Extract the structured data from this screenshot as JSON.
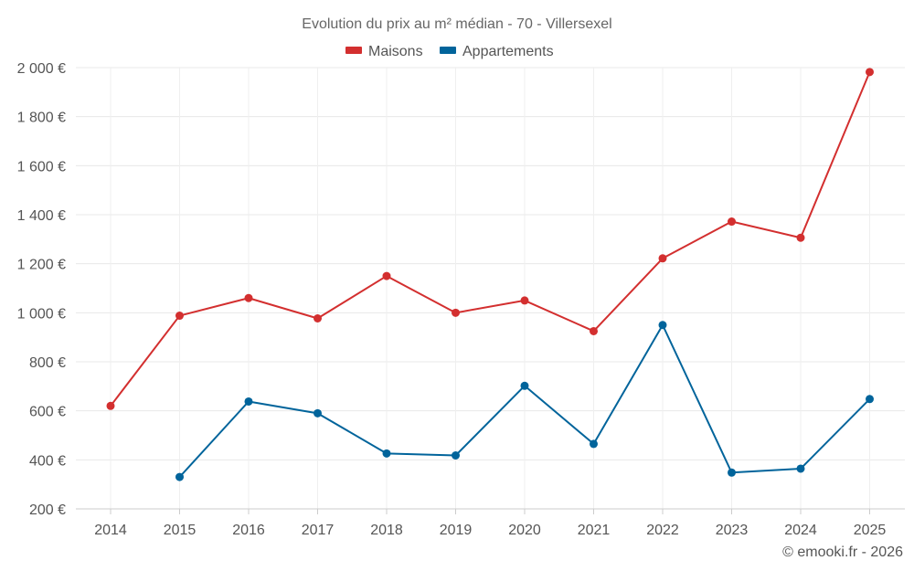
{
  "chart_data": {
    "type": "line",
    "title": "Evolution du prix au m² médian - 70 - Villersexel",
    "categories": [
      "2014",
      "2015",
      "2016",
      "2017",
      "2018",
      "2019",
      "2020",
      "2021",
      "2022",
      "2023",
      "2024",
      "2025"
    ],
    "series": [
      {
        "name": "Maisons",
        "color": "#d32f2f",
        "values": [
          620,
          988,
          1060,
          977,
          1150,
          1000,
          1050,
          925,
          1222,
          1372,
          1306,
          1982
        ]
      },
      {
        "name": "Appartements",
        "color": "#01649b",
        "values": [
          null,
          330,
          638,
          590,
          426,
          418,
          702,
          465,
          950,
          348,
          364,
          648
        ]
      }
    ],
    "ylim": [
      200,
      2000
    ],
    "yticks": [
      200,
      400,
      600,
      800,
      1000,
      1200,
      1400,
      1600,
      1800,
      2000
    ],
    "ytick_labels": [
      "200 €",
      "400 €",
      "600 €",
      "800 €",
      "1 000 €",
      "1 200 €",
      "1 400 €",
      "1 600 €",
      "1 800 €",
      "2 000 €"
    ],
    "legend_position": "top-center",
    "grid": true,
    "credit": "© emooki.fr - 2026"
  }
}
